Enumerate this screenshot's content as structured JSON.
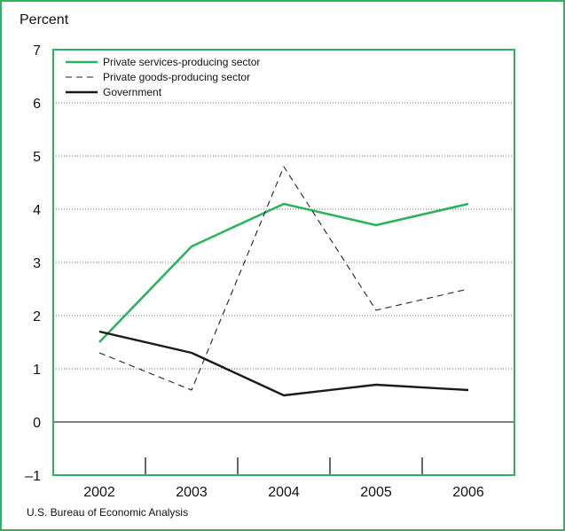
{
  "colors": {
    "frame": "#2db35d",
    "services": "#2db35d",
    "goods": "#222222",
    "government": "#1a1a1a",
    "grid": "#6b6b6b"
  },
  "chart_data": {
    "type": "line",
    "ylabel": "Percent",
    "ylim": [
      -1,
      7
    ],
    "yticks": [
      "–1",
      "0",
      "1",
      "2",
      "3",
      "4",
      "5",
      "6",
      "7"
    ],
    "categories": [
      "2002",
      "2003",
      "2004",
      "2005",
      "2006"
    ],
    "grid": true,
    "legend_position": "top-left",
    "series": [
      {
        "name": "Private services-producing sector",
        "style": "solid",
        "values": [
          1.5,
          3.3,
          4.1,
          3.7,
          4.1
        ]
      },
      {
        "name": "Private goods-producing sector",
        "style": "dashed",
        "values": [
          1.3,
          0.6,
          4.8,
          2.1,
          2.5
        ]
      },
      {
        "name": "Government",
        "style": "solid",
        "values": [
          1.7,
          1.3,
          0.5,
          0.7,
          0.6
        ]
      }
    ]
  },
  "source": "U.S. Bureau of Economic Analysis"
}
